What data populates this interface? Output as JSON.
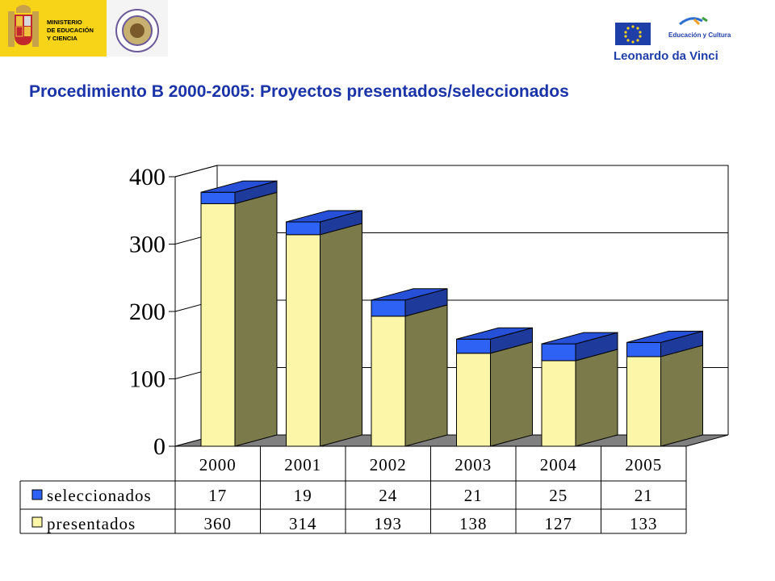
{
  "header": {
    "left_logo": {
      "ministry_lines": [
        "MINISTERIO",
        "DE EDUCACIÓN",
        "Y CIENCIA"
      ]
    },
    "right_logo": {
      "program_tagline": "Educación y Cultura",
      "program_name": "Leonardo da Vinci"
    }
  },
  "colors": {
    "title": "#1a33a8",
    "ministry_yellow": "#f7d417",
    "seleccionados": "#2d62f5",
    "presentados": "#fcf7a8",
    "side_face": "#7a7a4a",
    "floor": "#808080"
  },
  "chart_data": {
    "type": "bar",
    "stacked": true,
    "title": "Procedimiento B 2000-2005: Proyectos presentados/seleccionados",
    "categories": [
      "2000",
      "2001",
      "2002",
      "2003",
      "2004",
      "2005"
    ],
    "series": [
      {
        "name": "seleccionados",
        "values": [
          17,
          19,
          24,
          21,
          25,
          21
        ],
        "color": "#2d62f5"
      },
      {
        "name": "presentados",
        "values": [
          360,
          314,
          193,
          138,
          127,
          133
        ],
        "color": "#fcf7a8"
      }
    ],
    "ylim": [
      0,
      400
    ],
    "yticks": [
      0,
      100,
      200,
      300,
      400
    ],
    "grid": true,
    "data_table": true,
    "three_d": true
  }
}
